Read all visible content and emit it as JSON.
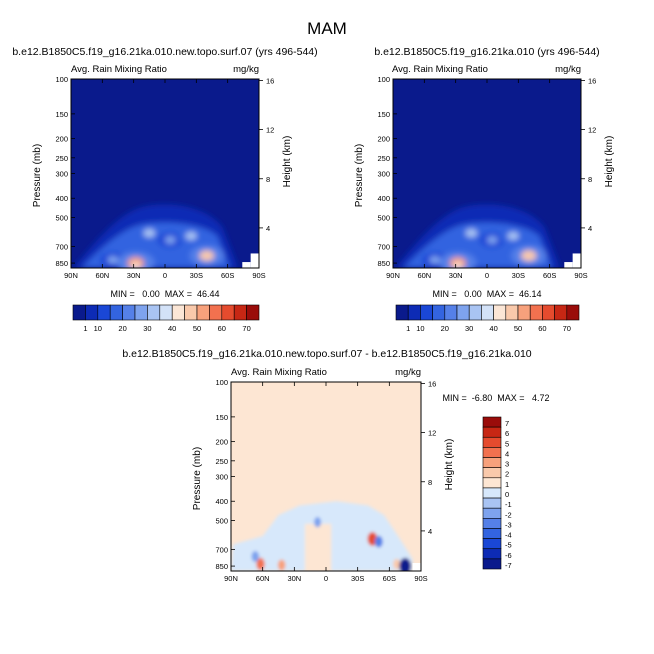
{
  "figure_title": "MAM",
  "colors": {
    "levels": [
      "#0a1a8c",
      "#0d2bb5",
      "#1a47d6",
      "#3364e0",
      "#5580e8",
      "#7ea3ee",
      "#a9c4f3",
      "#d3e2f8",
      "#fbe6d6",
      "#f9c9ab",
      "#f7a17c",
      "#f2714f",
      "#e54b2e",
      "#c72714",
      "#9a0c0a"
    ],
    "diff_levels": [
      "#0a1a8c",
      "#0d2bb5",
      "#1a47d6",
      "#3364e0",
      "#5580e8",
      "#7ea3ee",
      "#a9c4f3",
      "#d7e8fb",
      "#fde6d3",
      "#f9c9ab",
      "#f7a17c",
      "#f2714f",
      "#e54b2e",
      "#c72714",
      "#9a0c0a"
    ]
  },
  "chart_data": [
    {
      "type": "heatmap",
      "title": "b.e12.B1850C5.f19_g16.21ka.010.new.topo.surf.07 (yrs 496-544)",
      "left_label": "Avg. Rain Mixing Ratio",
      "right_label": "mg/kg",
      "xlabel": "",
      "ylabel": "Pressure (mb)",
      "ylabel_right": "Height (km)",
      "x_ticks": [
        "90N",
        "60N",
        "30N",
        "0",
        "30S",
        "60S",
        "90S"
      ],
      "x_values": [
        90,
        60,
        30,
        0,
        -30,
        -60,
        -90
      ],
      "y_ticks": [
        "100",
        "150",
        "200",
        "250",
        "300",
        "400",
        "500",
        "700",
        "850"
      ],
      "y_values": [
        100,
        150,
        200,
        250,
        300,
        400,
        500,
        700,
        850
      ],
      "y_range": [
        100,
        900
      ],
      "right_ticks": [
        "16",
        "12",
        "8",
        "4"
      ],
      "right_values": [
        16,
        12,
        8,
        4
      ],
      "min": 0.0,
      "max": 46.44,
      "stats": "MIN =   0.00  MAX =  46.44",
      "colorbar": {
        "orientation": "horizontal",
        "labels": [
          "1",
          "10",
          "20",
          "30",
          "40",
          "50",
          "60",
          "70"
        ]
      },
      "features": [
        {
          "lat": 50,
          "p": 820,
          "value": 12
        },
        {
          "lat": 28,
          "p": 850,
          "value": 35
        },
        {
          "lat": 15,
          "p": 600,
          "value": 15
        },
        {
          "lat": -5,
          "p": 650,
          "value": 12
        },
        {
          "lat": -25,
          "p": 620,
          "value": 14
        },
        {
          "lat": -40,
          "p": 780,
          "value": 28
        }
      ]
    },
    {
      "type": "heatmap",
      "title": "b.e12.B1850C5.f19_g16.21ka.010 (yrs 496-544)",
      "left_label": "Avg. Rain Mixing Ratio",
      "right_label": "mg/kg",
      "xlabel": "",
      "ylabel": "Pressure (mb)",
      "ylabel_right": "Height (km)",
      "x_ticks": [
        "90N",
        "60N",
        "30N",
        "0",
        "30S",
        "60S",
        "90S"
      ],
      "x_values": [
        90,
        60,
        30,
        0,
        -30,
        -60,
        -90
      ],
      "y_ticks": [
        "100",
        "150",
        "200",
        "250",
        "300",
        "400",
        "500",
        "700",
        "850"
      ],
      "y_values": [
        100,
        150,
        200,
        250,
        300,
        400,
        500,
        700,
        850
      ],
      "y_range": [
        100,
        900
      ],
      "right_ticks": [
        "16",
        "12",
        "8",
        "4"
      ],
      "right_values": [
        16,
        12,
        8,
        4
      ],
      "min": 0.0,
      "max": 46.14,
      "stats": "MIN =   0.00  MAX =  46.14",
      "colorbar": {
        "orientation": "horizontal",
        "labels": [
          "1",
          "10",
          "20",
          "30",
          "40",
          "50",
          "60",
          "70"
        ]
      },
      "features": [
        {
          "lat": 50,
          "p": 820,
          "value": 12
        },
        {
          "lat": 28,
          "p": 850,
          "value": 34
        },
        {
          "lat": 15,
          "p": 600,
          "value": 15
        },
        {
          "lat": -5,
          "p": 650,
          "value": 12
        },
        {
          "lat": -25,
          "p": 620,
          "value": 14
        },
        {
          "lat": -40,
          "p": 780,
          "value": 30
        }
      ]
    },
    {
      "type": "heatmap",
      "title": "b.e12.B1850C5.f19_g16.21ka.010.new.topo.surf.07 - b.e12.B1850C5.f19_g16.21ka.010",
      "left_label": "Avg. Rain Mixing Ratio",
      "right_label": "mg/kg",
      "xlabel": "",
      "ylabel": "Pressure (mb)",
      "ylabel_right": "Height (km)",
      "x_ticks": [
        "90N",
        "60N",
        "30N",
        "0",
        "30S",
        "60S",
        "90S"
      ],
      "x_values": [
        90,
        60,
        30,
        0,
        -30,
        -60,
        -90
      ],
      "y_ticks": [
        "100",
        "150",
        "200",
        "250",
        "300",
        "400",
        "500",
        "700",
        "850"
      ],
      "y_values": [
        100,
        150,
        200,
        250,
        300,
        400,
        500,
        700,
        850
      ],
      "y_range": [
        100,
        900
      ],
      "right_ticks": [
        "16",
        "12",
        "8",
        "4"
      ],
      "right_values": [
        16,
        12,
        8,
        4
      ],
      "min": -6.8,
      "max": 4.72,
      "stats": "MIN =  -6.80  MAX =   4.72",
      "colorbar": {
        "orientation": "vertical",
        "labels": [
          "7",
          "6",
          "5",
          "4",
          "3",
          "2",
          "1",
          "0",
          "-1",
          "-2",
          "-3",
          "-4",
          "-5",
          "-6",
          "-7"
        ]
      },
      "features": [
        {
          "lat": 62,
          "p": 830,
          "value": 3.5
        },
        {
          "lat": 67,
          "p": 760,
          "value": -2.5
        },
        {
          "lat": 42,
          "p": 840,
          "value": 2.5
        },
        {
          "lat": 8,
          "p": 510,
          "value": -2
        },
        {
          "lat": -44,
          "p": 620,
          "value": 4.7
        },
        {
          "lat": -50,
          "p": 640,
          "value": -3
        },
        {
          "lat": -67,
          "p": 830,
          "value": 2
        },
        {
          "lat": -75,
          "p": 850,
          "value": -6.8
        }
      ]
    }
  ]
}
